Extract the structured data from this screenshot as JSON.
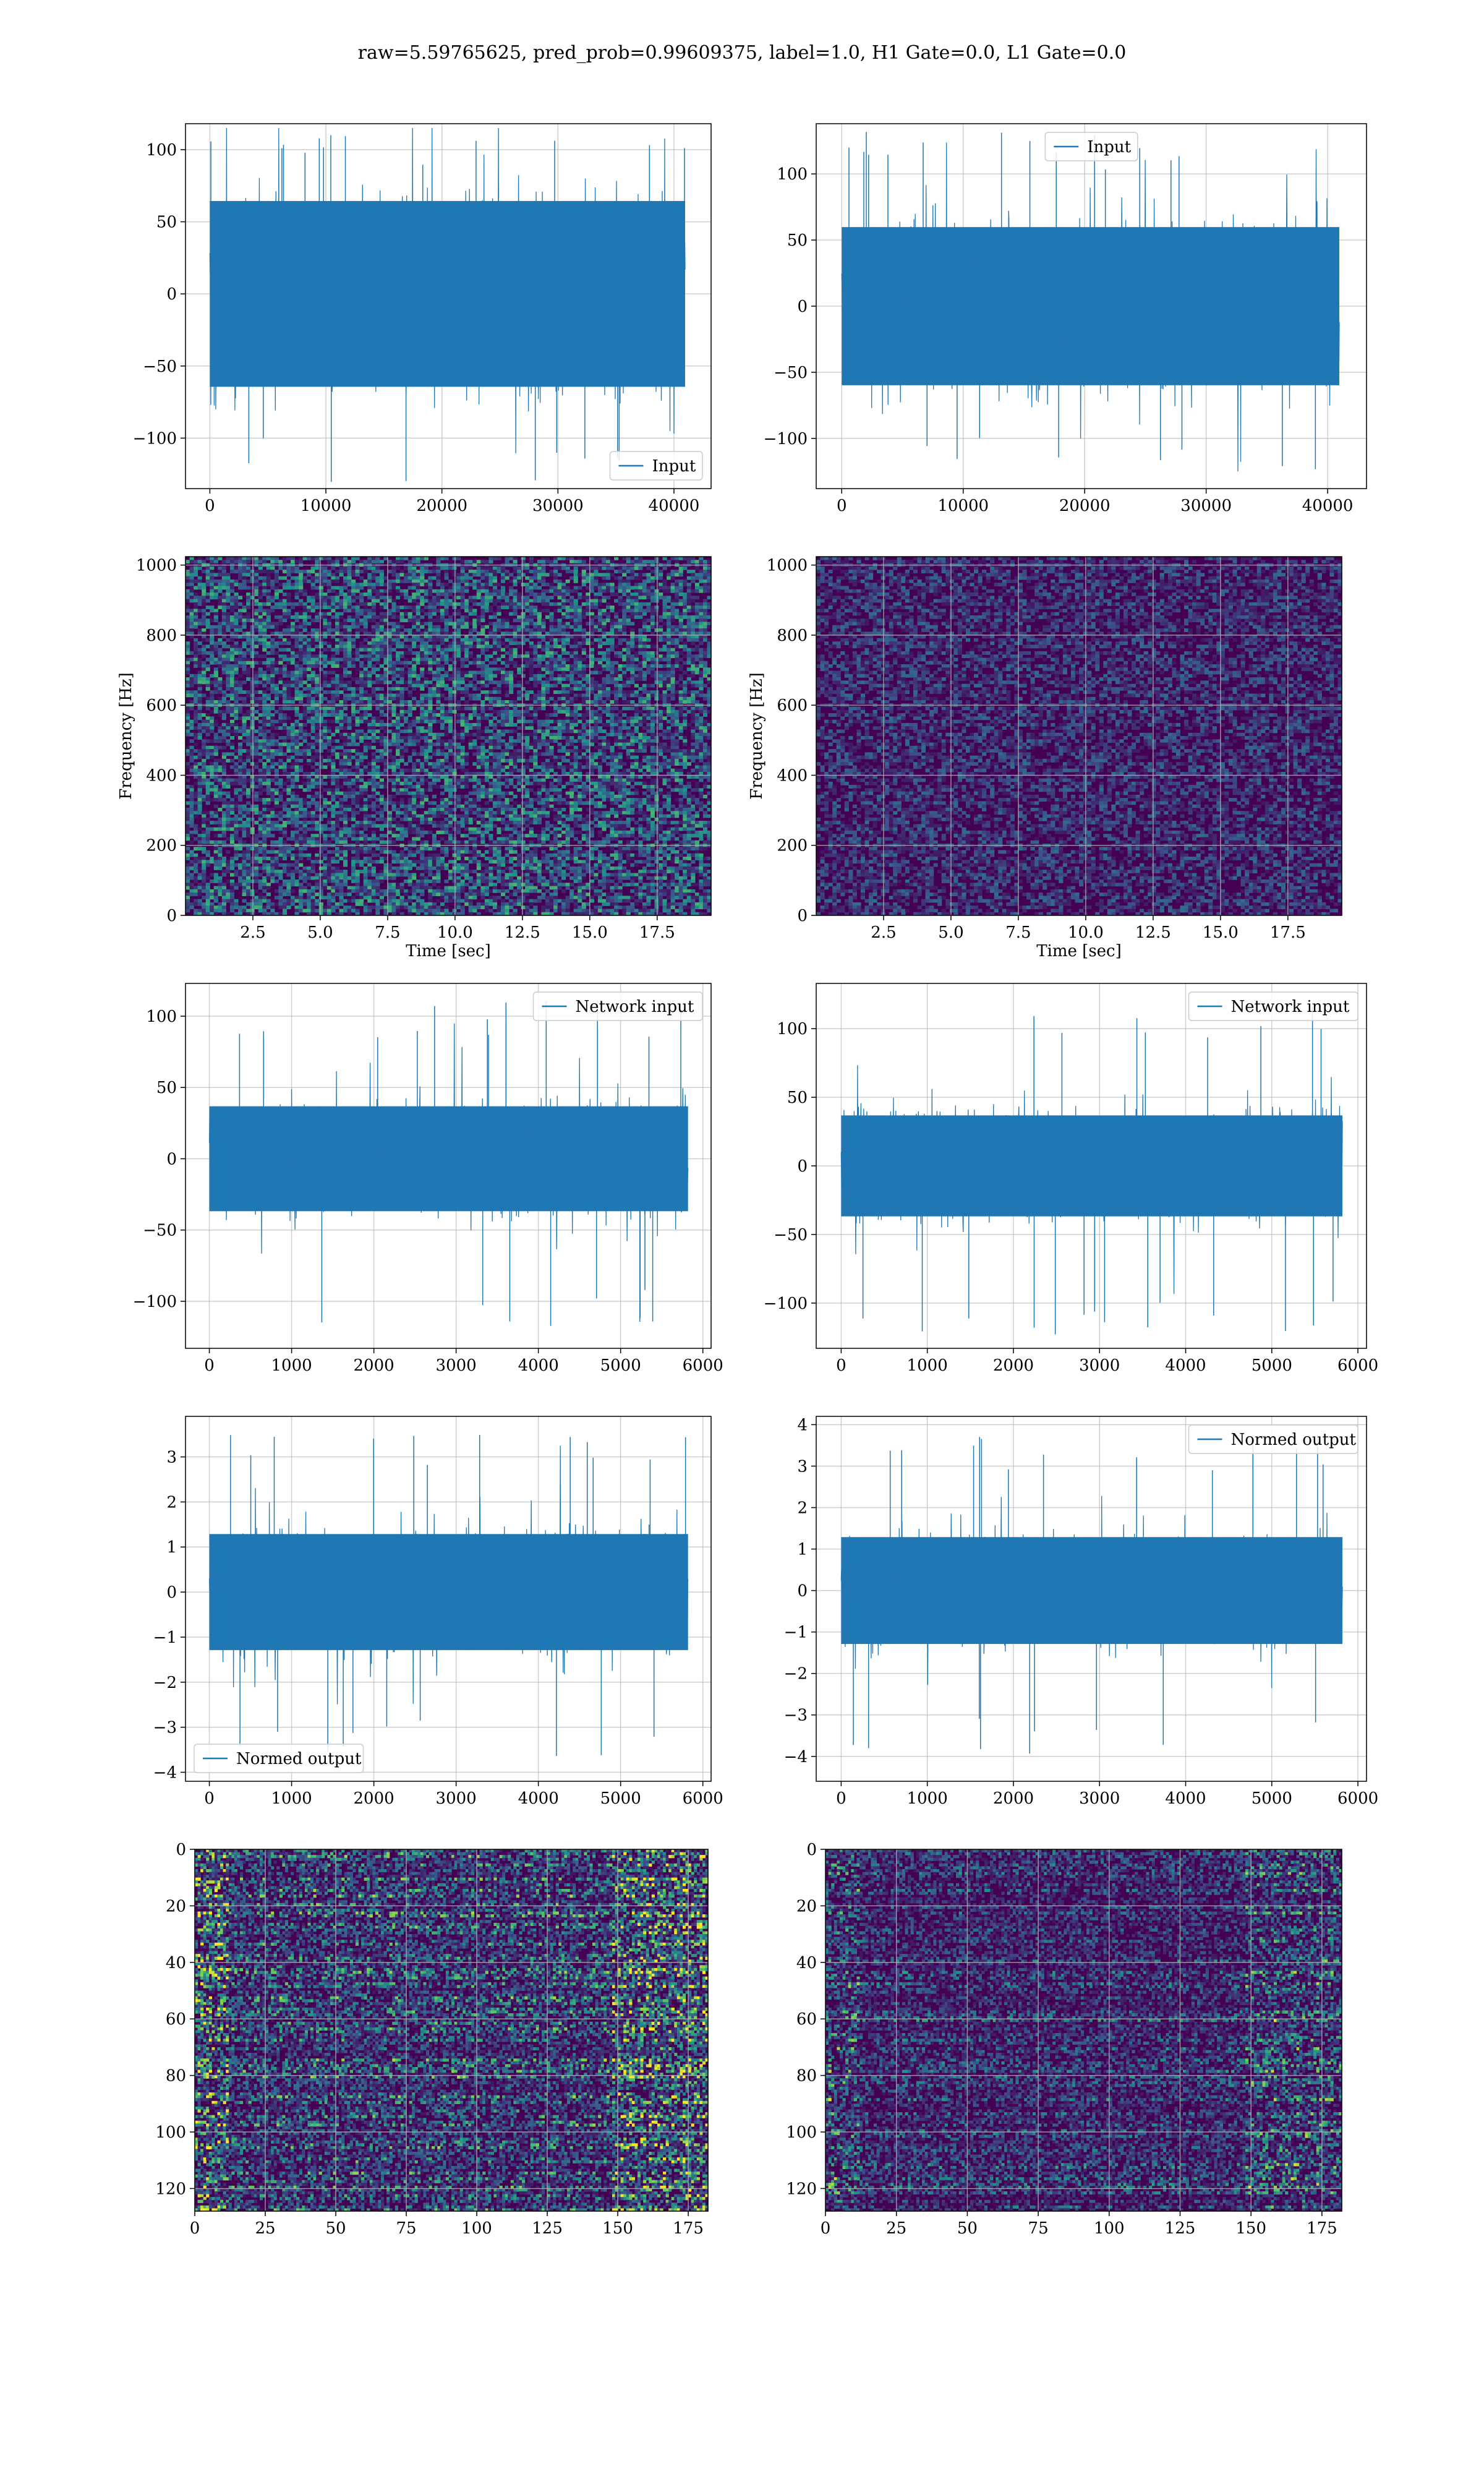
{
  "figure": {
    "title": "raw=5.59765625, pred_prob=0.99609375, label=1.0, H1 Gate=0.0, L1 Gate=0.0"
  },
  "colors": {
    "line": "#1f77b4",
    "grid": "#b0b0b0",
    "viridis_low": "#440154",
    "viridis_mid": "#21918c",
    "viridis_high": "#fde725"
  },
  "chart_data": [
    {
      "id": "row1-left",
      "type": "line",
      "xlim": [
        -2100,
        43200
      ],
      "ylim": [
        -135,
        118
      ],
      "xticks": [
        0,
        10000,
        20000,
        30000,
        40000
      ],
      "yticks": [
        -100,
        -50,
        0,
        50,
        100
      ],
      "xlabel": "",
      "ylabel": "",
      "grid": true,
      "legend": "lower right",
      "series": [
        {
          "name": "Input",
          "n_samples": 40960,
          "x_range": [
            0,
            40960
          ],
          "envelope": [
            -100,
            100
          ],
          "min": -133,
          "max": 115,
          "typical_amplitude": 70
        }
      ]
    },
    {
      "id": "row1-right",
      "type": "line",
      "xlim": [
        -2100,
        43200
      ],
      "ylim": [
        -138,
        138
      ],
      "xticks": [
        0,
        10000,
        20000,
        30000,
        40000
      ],
      "yticks": [
        -100,
        -50,
        0,
        50,
        100
      ],
      "xlabel": "",
      "ylabel": "",
      "grid": true,
      "legend": "upper center",
      "series": [
        {
          "name": "Input",
          "n_samples": 40960,
          "x_range": [
            0,
            40960
          ],
          "envelope": [
            -100,
            100
          ],
          "min": -125,
          "max": 133,
          "typical_amplitude": 65
        }
      ]
    },
    {
      "id": "row2-left",
      "type": "heatmap",
      "xlim": [
        0,
        19.5
      ],
      "ylim": [
        0,
        1024
      ],
      "xticks": [
        2.5,
        5.0,
        7.5,
        10.0,
        12.5,
        15.0,
        17.5
      ],
      "yticks": [
        0,
        200,
        400,
        600,
        800,
        1000
      ],
      "xlabel": "Time [sec]",
      "ylabel": "Frequency [Hz]",
      "grid": true,
      "colormap": "viridis",
      "value_range": [
        0,
        1
      ],
      "description_levels": {
        "mean": 0.22
      }
    },
    {
      "id": "row2-right",
      "type": "heatmap",
      "xlim": [
        0,
        19.5
      ],
      "ylim": [
        0,
        1024
      ],
      "xticks": [
        2.5,
        5.0,
        7.5,
        10.0,
        12.5,
        15.0,
        17.5
      ],
      "yticks": [
        0,
        200,
        400,
        600,
        800,
        1000
      ],
      "xlabel": "Time [sec]",
      "ylabel": "Frequency [Hz]",
      "grid": true,
      "colormap": "viridis",
      "value_range": [
        0,
        1
      ],
      "description_levels": {
        "mean": 0.12
      }
    },
    {
      "id": "row3-left",
      "type": "line",
      "xlim": [
        -290,
        6100
      ],
      "ylim": [
        -133,
        123
      ],
      "xticks": [
        0,
        1000,
        2000,
        3000,
        4000,
        5000,
        6000
      ],
      "yticks": [
        -100,
        -50,
        0,
        50,
        100
      ],
      "xlabel": "",
      "ylabel": "",
      "grid": true,
      "legend": "upper right",
      "series": [
        {
          "name": "Network input",
          "n_samples": 5820,
          "x_range": [
            0,
            5820
          ],
          "envelope": [
            -100,
            100
          ],
          "min": -120,
          "max": 112,
          "typical_amplitude": 40
        }
      ]
    },
    {
      "id": "row3-right",
      "type": "line",
      "xlim": [
        -290,
        6100
      ],
      "ylim": [
        -133,
        133
      ],
      "xticks": [
        0,
        1000,
        2000,
        3000,
        4000,
        5000,
        6000
      ],
      "yticks": [
        -100,
        -50,
        0,
        50,
        100
      ],
      "xlabel": "",
      "ylabel": "",
      "grid": true,
      "legend": "upper right",
      "series": [
        {
          "name": "Network input",
          "n_samples": 5820,
          "x_range": [
            0,
            5820
          ],
          "envelope": [
            -100,
            100
          ],
          "min": -128,
          "max": 120,
          "typical_amplitude": 40
        }
      ]
    },
    {
      "id": "row4-left",
      "type": "line",
      "xlim": [
        -290,
        6100
      ],
      "ylim": [
        -4.2,
        3.9
      ],
      "xticks": [
        0,
        1000,
        2000,
        3000,
        4000,
        5000,
        6000
      ],
      "yticks": [
        -4,
        -3,
        -2,
        -1,
        0,
        1,
        2,
        3
      ],
      "xlabel": "",
      "ylabel": "",
      "grid": true,
      "legend": "lower left",
      "series": [
        {
          "name": "Normed output",
          "n_samples": 5820,
          "x_range": [
            0,
            5820
          ],
          "envelope": [
            -4,
            4
          ],
          "min": -3.8,
          "max": 3.5,
          "typical_amplitude": 1.4
        }
      ]
    },
    {
      "id": "row4-right",
      "type": "line",
      "xlim": [
        -290,
        6100
      ],
      "ylim": [
        -4.6,
        4.2
      ],
      "xticks": [
        0,
        1000,
        2000,
        3000,
        4000,
        5000,
        6000
      ],
      "yticks": [
        -4,
        -3,
        -2,
        -1,
        0,
        1,
        2,
        3,
        4
      ],
      "xlabel": "",
      "ylabel": "",
      "grid": true,
      "legend": "upper right",
      "series": [
        {
          "name": "Normed output",
          "n_samples": 5820,
          "x_range": [
            0,
            5820
          ],
          "envelope": [
            -4,
            4
          ],
          "min": -4.1,
          "max": 3.8,
          "typical_amplitude": 1.4
        }
      ]
    },
    {
      "id": "row5-left",
      "type": "heatmap",
      "xlim": [
        0,
        182
      ],
      "ylim": [
        128,
        0
      ],
      "xticks": [
        0,
        25,
        50,
        75,
        100,
        125,
        150,
        175
      ],
      "yticks": [
        0,
        20,
        40,
        60,
        80,
        100,
        120
      ],
      "xlabel": "",
      "ylabel": "",
      "grid": true,
      "colormap": "viridis",
      "value_range": [
        0,
        1
      ],
      "description_levels": {
        "mean": 0.22
      }
    },
    {
      "id": "row5-right",
      "type": "heatmap",
      "xlim": [
        0,
        182
      ],
      "ylim": [
        128,
        0
      ],
      "xticks": [
        0,
        25,
        50,
        75,
        100,
        125,
        150,
        175
      ],
      "yticks": [
        0,
        20,
        40,
        60,
        80,
        100,
        120
      ],
      "xlabel": "",
      "ylabel": "",
      "grid": true,
      "colormap": "viridis",
      "value_range": [
        0,
        1
      ],
      "description_levels": {
        "mean": 0.15
      }
    }
  ]
}
